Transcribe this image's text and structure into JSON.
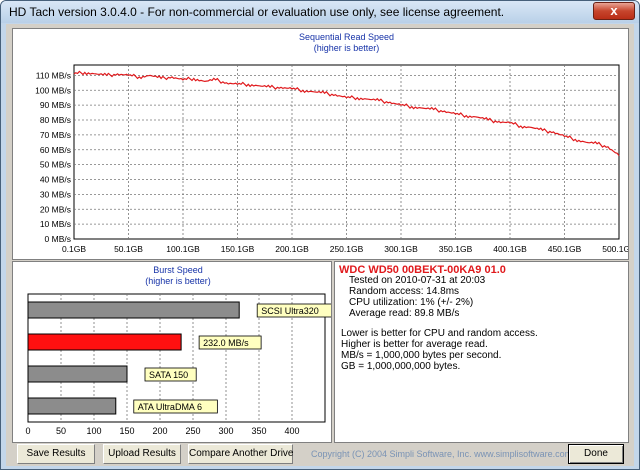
{
  "window": {
    "title": "HD Tach version 3.0.4.0  - For non-commercial or evaluation use only, see license agreement.",
    "close_glyph": "x"
  },
  "sequential": {
    "chart_data": {
      "type": "line",
      "title": "Sequential Read Speed",
      "subtitle": "(higher is better)",
      "x_ticks": [
        "0.1GB",
        "50.1GB",
        "100.1GB",
        "150.1GB",
        "200.1GB",
        "250.1GB",
        "300.1GB",
        "350.1GB",
        "400.1GB",
        "450.1GB",
        "500.1GB"
      ],
      "y_ticks": [
        "0 MB/s",
        "10 MB/s",
        "20 MB/s",
        "30 MB/s",
        "40 MB/s",
        "50 MB/s",
        "60 MB/s",
        "70 MB/s",
        "80 MB/s",
        "90 MB/s",
        "100 MB/s",
        "110 MB/s"
      ],
      "xlim": [
        0.1,
        500.1
      ],
      "ylim": [
        0,
        117
      ],
      "grid": true,
      "series": [
        {
          "color": "#e0191c",
          "x": [
            0.1,
            10,
            20,
            30,
            40,
            50,
            60,
            70,
            80,
            90,
            100,
            110,
            120,
            130,
            140,
            150,
            160,
            170,
            180,
            190,
            200,
            210,
            220,
            230,
            240,
            250,
            260,
            270,
            280,
            290,
            300,
            310,
            320,
            330,
            340,
            350,
            360,
            370,
            380,
            390,
            400,
            410,
            420,
            430,
            440,
            450,
            460,
            470,
            480,
            490,
            500.1
          ],
          "y": [
            111,
            112,
            111,
            110,
            111,
            110,
            109,
            110,
            108,
            109,
            107,
            108,
            106,
            107,
            105,
            104,
            104,
            103,
            102,
            102,
            101,
            100,
            99,
            98,
            97,
            95,
            95,
            94,
            93,
            92,
            90,
            89,
            88,
            87,
            86,
            84,
            83,
            82,
            80,
            79,
            78,
            76,
            75,
            73,
            72,
            69,
            67,
            65,
            64,
            62,
            56
          ]
        }
      ]
    }
  },
  "burst": {
    "chart_data": {
      "type": "bar",
      "orientation": "horizontal",
      "title": "Burst Speed",
      "subtitle": "(higher is better)",
      "xlim": [
        0,
        450
      ],
      "x_ticks": [
        "0",
        "50",
        "100",
        "150",
        "200",
        "250",
        "300",
        "350",
        "400"
      ],
      "grid": true,
      "bars": [
        {
          "label": "SCSI Ultra320",
          "value": 320,
          "color": "#8c8c8c"
        },
        {
          "label": "232.0 MB/s",
          "value": 232,
          "color": "#ff1010"
        },
        {
          "label": "SATA 150",
          "value": 150,
          "color": "#8c8c8c"
        },
        {
          "label": "ATA UltraDMA 6",
          "value": 133,
          "color": "#8c8c8c"
        }
      ]
    }
  },
  "info": {
    "drive": "WDC WD50 00BEKT-00KA9 01.0",
    "tested": "Tested on 2010-07-31 at 20:03",
    "random_access": "Random access: 14.8ms",
    "cpu": "CPU utilization: 1% (+/- 2%)",
    "average_read": "Average read: 89.8 MB/s",
    "notes": [
      "Lower is better for CPU and random access.",
      "Higher is better for average read.",
      "MB/s = 1,000,000 bytes per second.",
      "GB = 1,000,000,000 bytes."
    ]
  },
  "buttons": {
    "save": "Save Results",
    "upload": "Upload Results",
    "compare": "Compare Another Drive",
    "done": "Done"
  },
  "copyright": "Copyright (C) 2004 Simpli Software, Inc. www.simplisoftware.com"
}
